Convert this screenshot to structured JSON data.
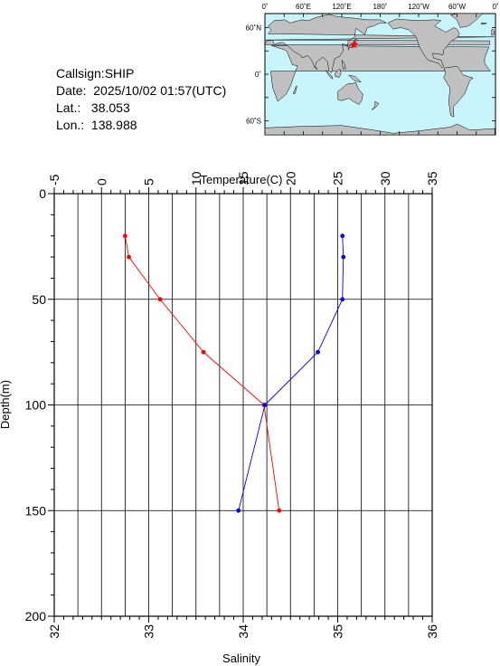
{
  "station": {
    "callsign": "Callsign:SHIP",
    "date": "Date:  2025/10/02 01:57(UTC)",
    "lat": "Lat.:   38.053",
    "lon": "Lon.:  138.988"
  },
  "map": {
    "top_labels": [
      "0˚",
      "60˚E",
      "120˚E",
      "180˚",
      "120˚W",
      "60˚W",
      "0˚"
    ],
    "left_labels": [
      "60˚N",
      "0˚",
      "60˚S"
    ],
    "ocean_color": "#c8f4fb",
    "land_color": "#c0c0c0",
    "marker_color": "#ff0000",
    "marker": {
      "lat": 38.053,
      "lon": 138.988
    }
  },
  "chart_data": {
    "type": "line",
    "xlabel_top": "Temperature(C)",
    "xlabel_bottom": "Salinity",
    "ylabel": "Depth(m)",
    "temp_range": [
      -5,
      35
    ],
    "sal_range": [
      32,
      36
    ],
    "depth_range": [
      0,
      200
    ],
    "temp_ticks": [
      "-5",
      "0",
      "5",
      "10",
      "15",
      "20",
      "25",
      "30",
      "35"
    ],
    "sal_ticks": [
      "32",
      "33",
      "34",
      "35",
      "36"
    ],
    "depth_ticks": [
      "0",
      "50",
      "100",
      "150",
      "200"
    ],
    "series": [
      {
        "quantity": "temperature",
        "color": "#ff0000",
        "points": [
          {
            "value": 2.5,
            "depth": 20
          },
          {
            "value": 2.9,
            "depth": 30
          },
          {
            "value": 6.2,
            "depth": 50
          },
          {
            "value": 10.8,
            "depth": 75
          },
          {
            "value": 17.2,
            "depth": 100
          },
          {
            "value": 18.8,
            "depth": 150
          }
        ]
      },
      {
        "quantity": "salinity",
        "color": "#0000ff",
        "points": [
          {
            "value": 35.05,
            "depth": 20
          },
          {
            "value": 35.06,
            "depth": 30
          },
          {
            "value": 35.05,
            "depth": 50
          },
          {
            "value": 34.79,
            "depth": 75
          },
          {
            "value": 34.23,
            "depth": 100
          },
          {
            "value": 33.95,
            "depth": 150
          }
        ]
      }
    ]
  }
}
